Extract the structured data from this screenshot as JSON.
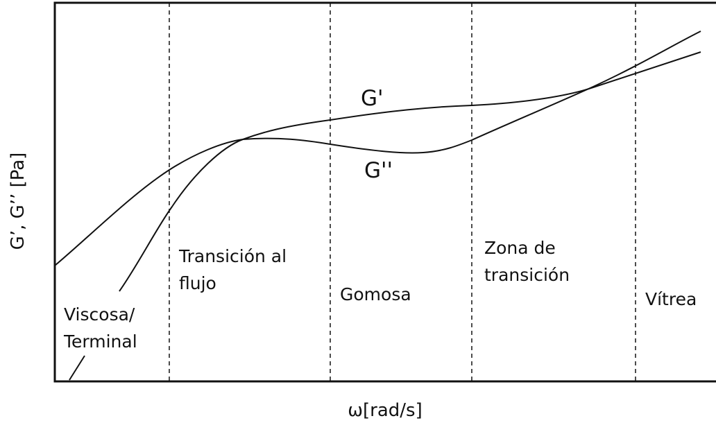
{
  "axes": {
    "x_label": "ω[rad/s]",
    "y_label": "G’, G’’ [Pa]"
  },
  "curves": [
    {
      "label": "G'"
    },
    {
      "label": "G''"
    }
  ],
  "regions": [
    {
      "lines": [
        "Viscosa/",
        "Terminal"
      ]
    },
    {
      "lines": [
        "Transición al",
        "flujo"
      ]
    },
    {
      "lines": [
        "Gomosa"
      ]
    },
    {
      "lines": [
        "Zona de",
        "transición"
      ]
    },
    {
      "lines": [
        "Vítrea"
      ]
    }
  ]
}
